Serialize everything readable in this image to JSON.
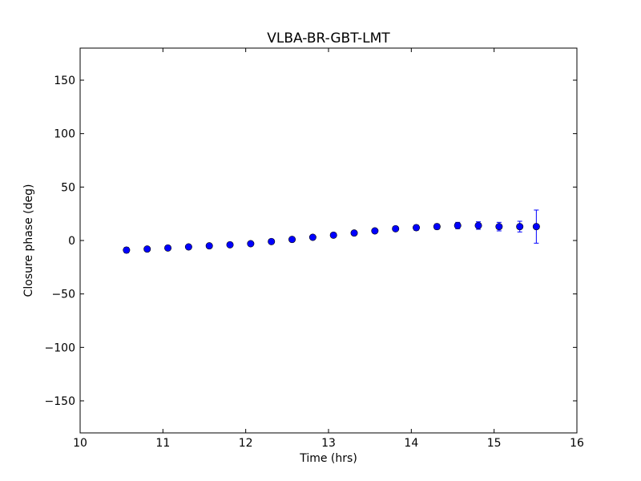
{
  "chart_data": {
    "type": "scatter",
    "title": "VLBA-BR-GBT-LMT",
    "xlabel": "Time (hrs)",
    "ylabel": "Closure phase (deg)",
    "xlim": [
      10,
      16
    ],
    "ylim": [
      -180,
      180
    ],
    "xticks": [
      10,
      11,
      12,
      13,
      14,
      15,
      16
    ],
    "xtick_labels": [
      "10",
      "11",
      "12",
      "13",
      "14",
      "15",
      "16"
    ],
    "yticks": [
      -150,
      -100,
      -50,
      0,
      50,
      100,
      150
    ],
    "ytick_labels": [
      "−150",
      "−100",
      "−50",
      "0",
      "50",
      "100",
      "150"
    ],
    "grid": false,
    "marker_color": "#0000ff",
    "errorbar_color": "#0000ff",
    "series": [
      {
        "x": [
          10.56,
          10.81,
          11.06,
          11.31,
          11.56,
          11.81,
          12.06,
          12.31,
          12.56,
          12.81,
          13.06,
          13.31,
          13.56,
          13.81,
          14.06,
          14.31,
          14.56,
          14.81,
          15.06,
          15.31,
          15.51
        ],
        "y": [
          -9,
          -8,
          -7,
          -6,
          -5,
          -4,
          -3,
          -1,
          1,
          3,
          5,
          7,
          9,
          11,
          12,
          13,
          14,
          14,
          13,
          13,
          13
        ],
        "yerr": [
          2.5,
          2,
          2,
          2,
          2,
          2,
          2,
          2,
          2,
          2,
          2,
          2,
          2,
          2,
          2.5,
          2.5,
          3,
          3.5,
          4,
          5,
          15.5
        ]
      }
    ]
  }
}
